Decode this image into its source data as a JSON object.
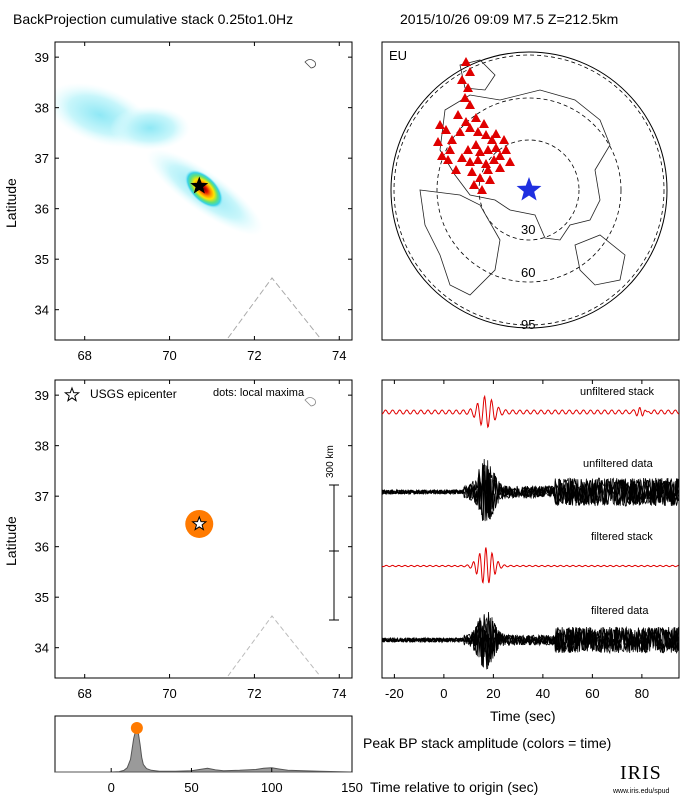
{
  "header": {
    "left_title": "BackProjection cumulative stack 0.25to1.0Hz",
    "right_title": "2015/10/26 09:09   M7.5   Z=212.5km"
  },
  "colors": {
    "stations": "#e00000",
    "epicenter": "#1f2fe0",
    "peak_marker": "#ff7a00",
    "stack_trace": "#e00000",
    "data_trace": "#000000",
    "amplitude_fill": "#9a9a9a"
  },
  "chart_data": [
    {
      "type": "heatmap",
      "panel": "cumulative-stack-map",
      "ylabel": "Latitude",
      "xlim": [
        67.3,
        74.3
      ],
      "ylim": [
        33.4,
        39.3
      ],
      "xticks": [
        68,
        70,
        72,
        74
      ],
      "yticks": [
        34,
        35,
        36,
        37,
        38,
        39
      ],
      "epicenter": {
        "lon": 70.7,
        "lat": 36.45
      },
      "hotspot": {
        "lon": 70.65,
        "lat": 36.45
      }
    },
    {
      "type": "scatter",
      "panel": "station-map",
      "label": "EU",
      "rings_deg": [
        "30",
        "60",
        "95"
      ]
    },
    {
      "type": "scatter",
      "panel": "local-maxima-map",
      "ylabel": "Latitude",
      "legend": [
        "USGS epicenter",
        "dots: local maxima"
      ],
      "scale_label": "300 km",
      "xlim": [
        67.3,
        74.3
      ],
      "ylim": [
        33.4,
        39.3
      ],
      "xticks": [
        68,
        70,
        72,
        74
      ],
      "yticks": [
        34,
        35,
        36,
        37,
        38,
        39
      ],
      "epicenter": {
        "lon": 70.7,
        "lat": 36.45
      },
      "maxima": [
        {
          "lon": 70.7,
          "lat": 36.45,
          "time": 15
        }
      ]
    },
    {
      "type": "line",
      "panel": "waveforms",
      "xlabel": "Time (sec)",
      "xlim": [
        -25,
        95
      ],
      "xticks": [
        -20,
        0,
        20,
        40,
        60,
        80
      ],
      "series": [
        {
          "name": "unfiltered stack"
        },
        {
          "name": "unfiltered data"
        },
        {
          "name": "filtered stack"
        },
        {
          "name": "filtered data"
        }
      ]
    },
    {
      "type": "area",
      "panel": "peak-amplitude",
      "title": "Peak BP stack amplitude (colors = time)",
      "xlabel": "Time relative to origin (sec)",
      "xlim": [
        -35,
        150
      ],
      "xticks": [
        0,
        50,
        100,
        150
      ],
      "peak": {
        "x": 16,
        "y": 1.0
      },
      "x": [
        -35,
        0,
        5,
        8,
        10,
        12,
        13,
        14,
        15,
        16,
        17,
        18,
        19,
        20,
        22,
        25,
        30,
        40,
        50,
        55,
        60,
        65,
        70,
        80,
        90,
        95,
        100,
        105,
        110,
        120,
        130,
        150
      ],
      "y": [
        0,
        0,
        0.01,
        0.04,
        0.1,
        0.3,
        0.55,
        0.8,
        0.95,
        1.0,
        0.9,
        0.65,
        0.35,
        0.18,
        0.08,
        0.04,
        0.02,
        0.02,
        0.03,
        0.06,
        0.09,
        0.05,
        0.03,
        0.04,
        0.06,
        0.09,
        0.1,
        0.07,
        0.04,
        0.03,
        0.02,
        0
      ]
    }
  ],
  "footer": {
    "logo_text": "IRIS",
    "logo_url_text": "www.iris.edu/spud"
  }
}
